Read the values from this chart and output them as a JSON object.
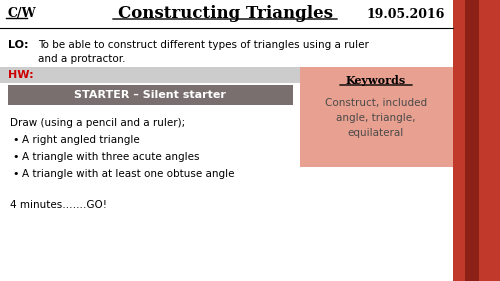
{
  "title": "Constructing Triangles",
  "date": "19.05.2016",
  "cw_label": "C/W",
  "lo_label": "LO:",
  "lo_text": "To be able to construct different types of triangles using a ruler\nand a protractor.",
  "hw_label": "HW:",
  "starter_text": "STARTER – Silent starter",
  "draw_intro": "Draw (using a pencil and a ruler);",
  "bullets": [
    "A right angled triangle",
    "A triangle with three acute angles",
    "A triangle with at least one obtuse angle"
  ],
  "footer": "4 minutes…….GO!",
  "keywords_title": "Keywords",
  "keywords_body": "Construct, included\nangle, triangle,\nequilateral",
  "bg_color": "#ffffff",
  "title_color": "#000000",
  "hw_color": "#cc0000",
  "starter_bg": "#7a6f6f",
  "starter_text_color": "#ffffff",
  "hw_bar_color": "#cccccc",
  "keywords_bg": "#e8a090",
  "right_bar_color": "#c0392b",
  "right_bar_dark": "#8b2016"
}
